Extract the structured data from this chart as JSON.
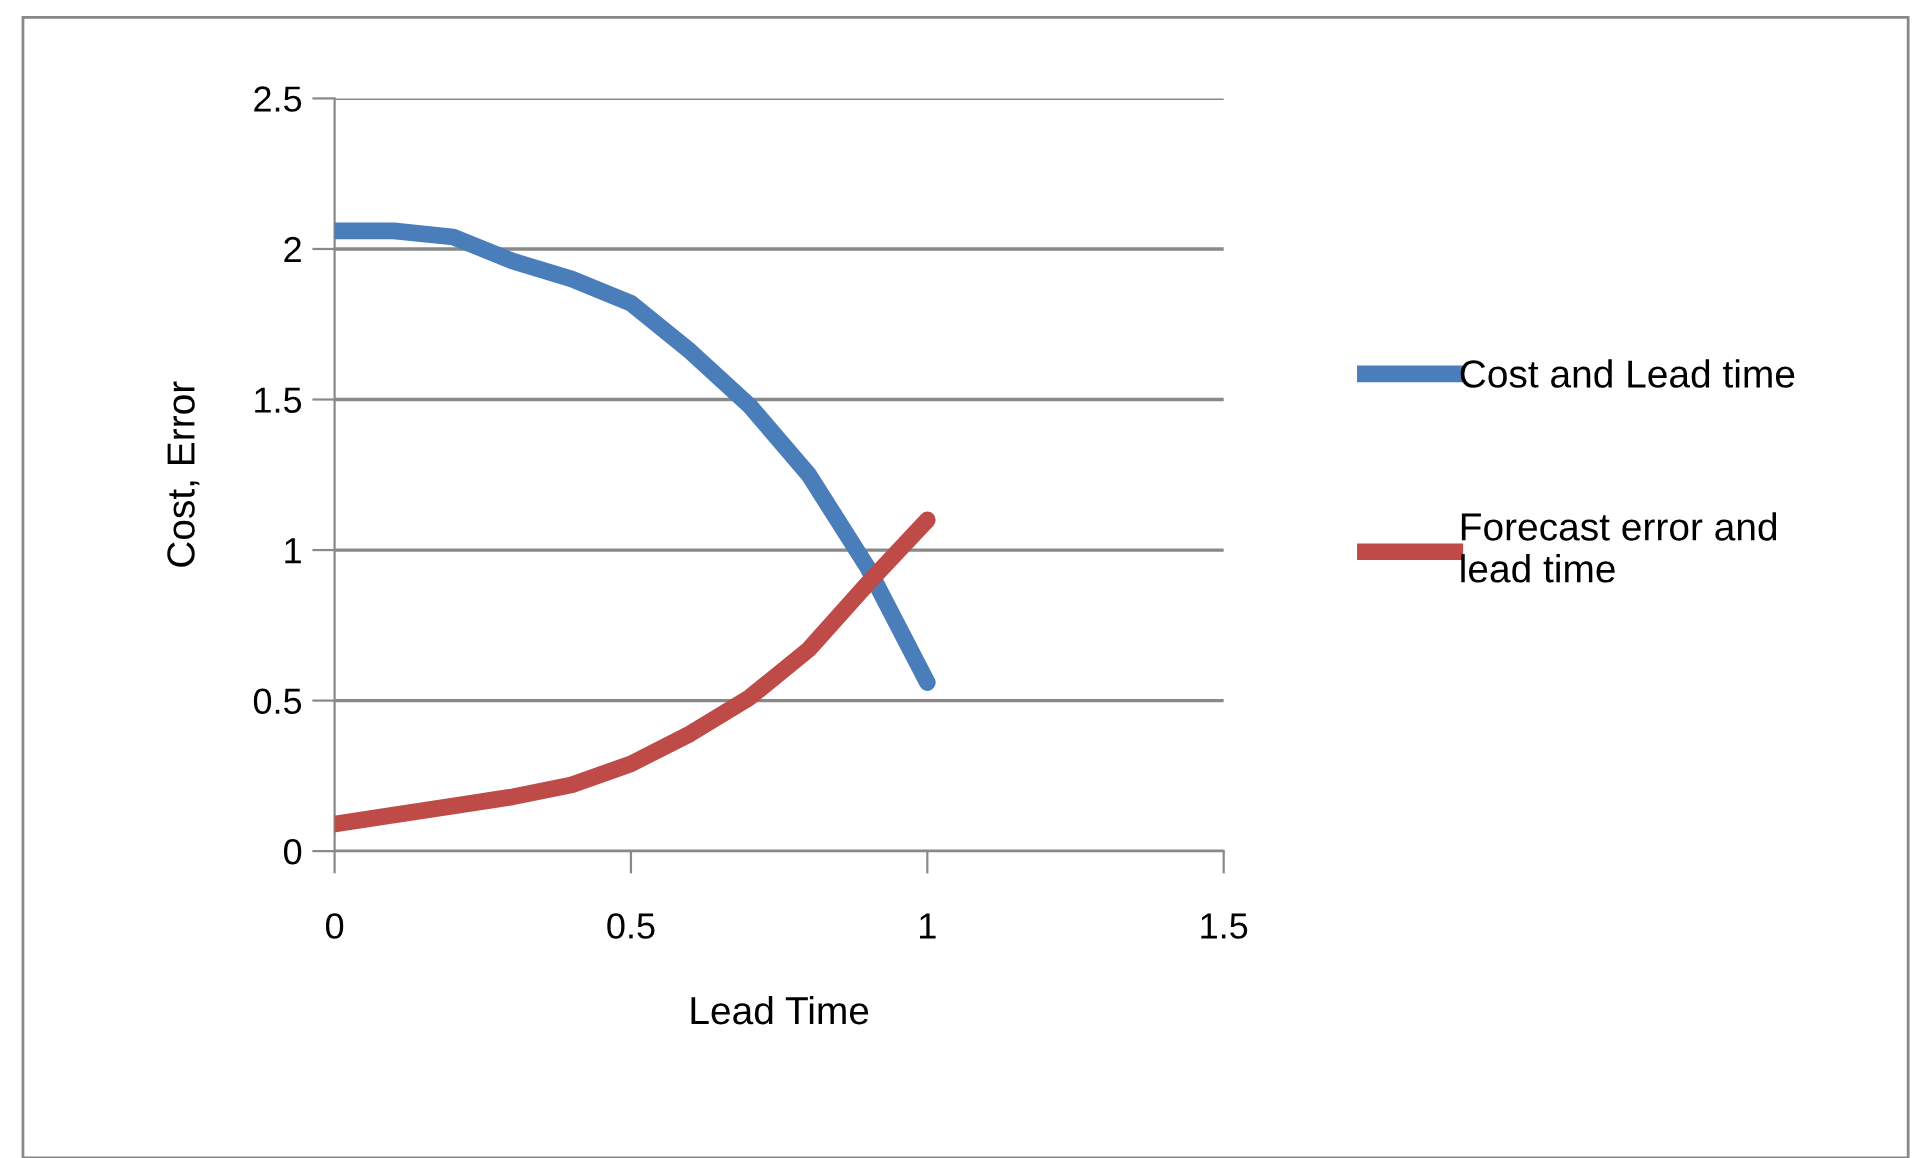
{
  "chart_data": {
    "type": "line",
    "xlabel": "Lead Time",
    "ylabel": "Cost, Error",
    "xlim": [
      0,
      1.5
    ],
    "xticks": [
      0,
      0.5,
      1,
      1.5
    ],
    "ylim": [
      0,
      2.5
    ],
    "yticks": [
      0,
      0.5,
      1,
      1.5,
      2,
      2.5
    ],
    "grid": "y",
    "legend": "right",
    "marker": "none",
    "line_style": "solid",
    "series": [
      {
        "name": "Cost and Lead time",
        "color": "#4a7ebb",
        "x": [
          0,
          0.1,
          0.2,
          0.3,
          0.4,
          0.5,
          0.6,
          0.7,
          0.8,
          0.9,
          1
        ],
        "values": [
          2.06,
          2.06,
          2.04,
          1.96,
          1.9,
          1.82,
          1.66,
          1.48,
          1.25,
          0.94,
          0.56
        ]
      },
      {
        "name": "Forecast error and lead time",
        "color": "#be4b48",
        "x": [
          0,
          0.1,
          0.2,
          0.3,
          0.4,
          0.5,
          0.6,
          0.7,
          0.8,
          0.9,
          1
        ],
        "values": [
          0.09,
          0.12,
          0.15,
          0.18,
          0.22,
          0.29,
          0.39,
          0.51,
          0.67,
          0.89,
          1.1
        ]
      }
    ]
  }
}
